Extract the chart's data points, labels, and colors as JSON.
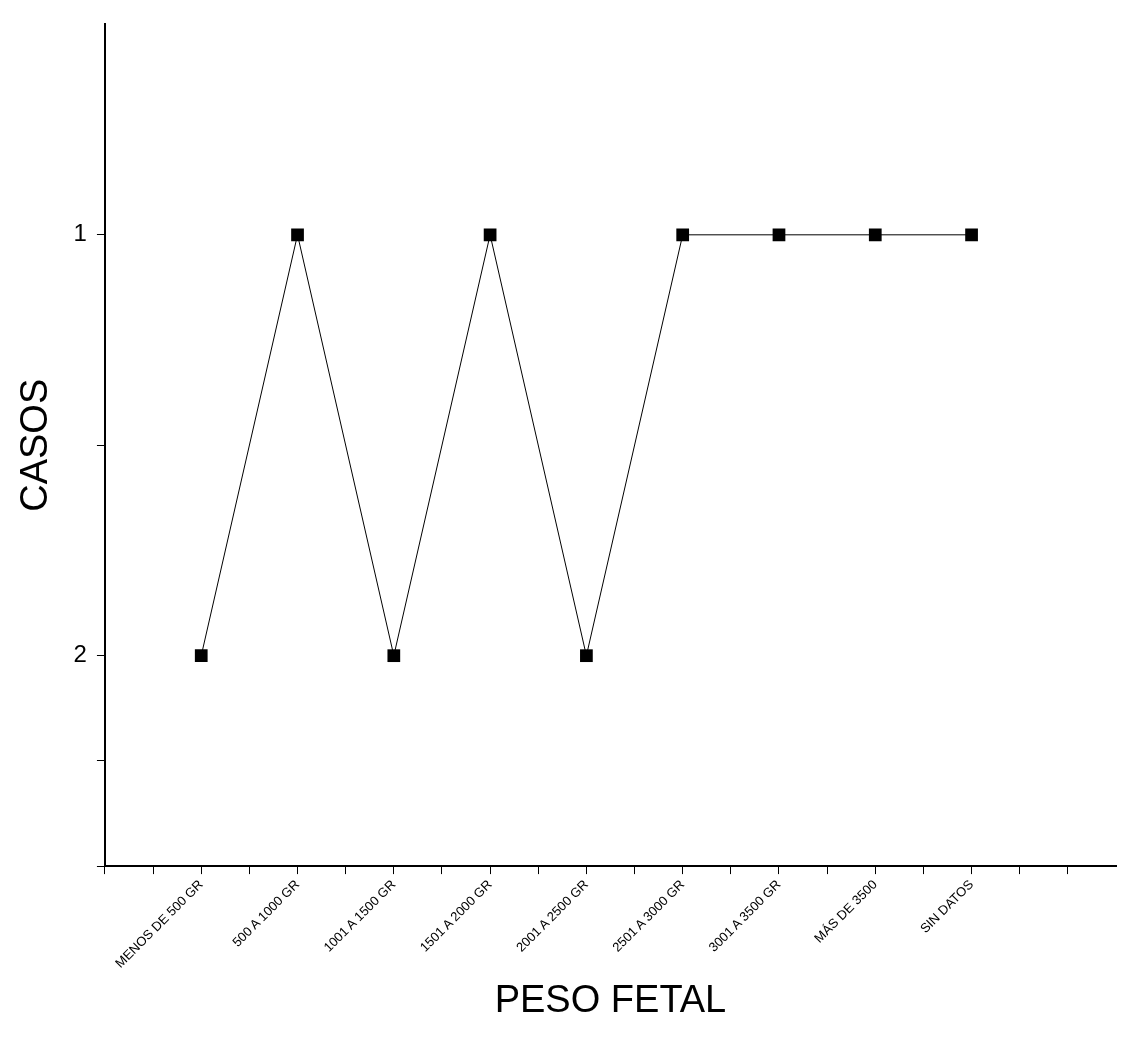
{
  "chart_data": {
    "type": "line",
    "xlabel": "PESO FETAL",
    "ylabel": "CASOS",
    "categories": [
      "MENOS DE 500 GR",
      "500 A 1000 GR",
      "1001 A 1500 GR",
      "1501 A 2000 GR",
      "2001 A 2500 GR",
      "2501 A 3000 GR",
      "3001 A 3500 GR",
      "MÁS DE 3500",
      "SIN DATOS"
    ],
    "values": [
      2,
      1,
      2,
      1,
      2,
      1,
      1,
      1,
      1
    ],
    "color": "#000000",
    "marker": "square",
    "line_style": "solid",
    "ylim": [
      2.5,
      0.5
    ],
    "yticks": [
      1,
      2,
      {
        "value": 2.5,
        "label": null
      }
    ],
    "grid": false,
    "legend": false
  }
}
